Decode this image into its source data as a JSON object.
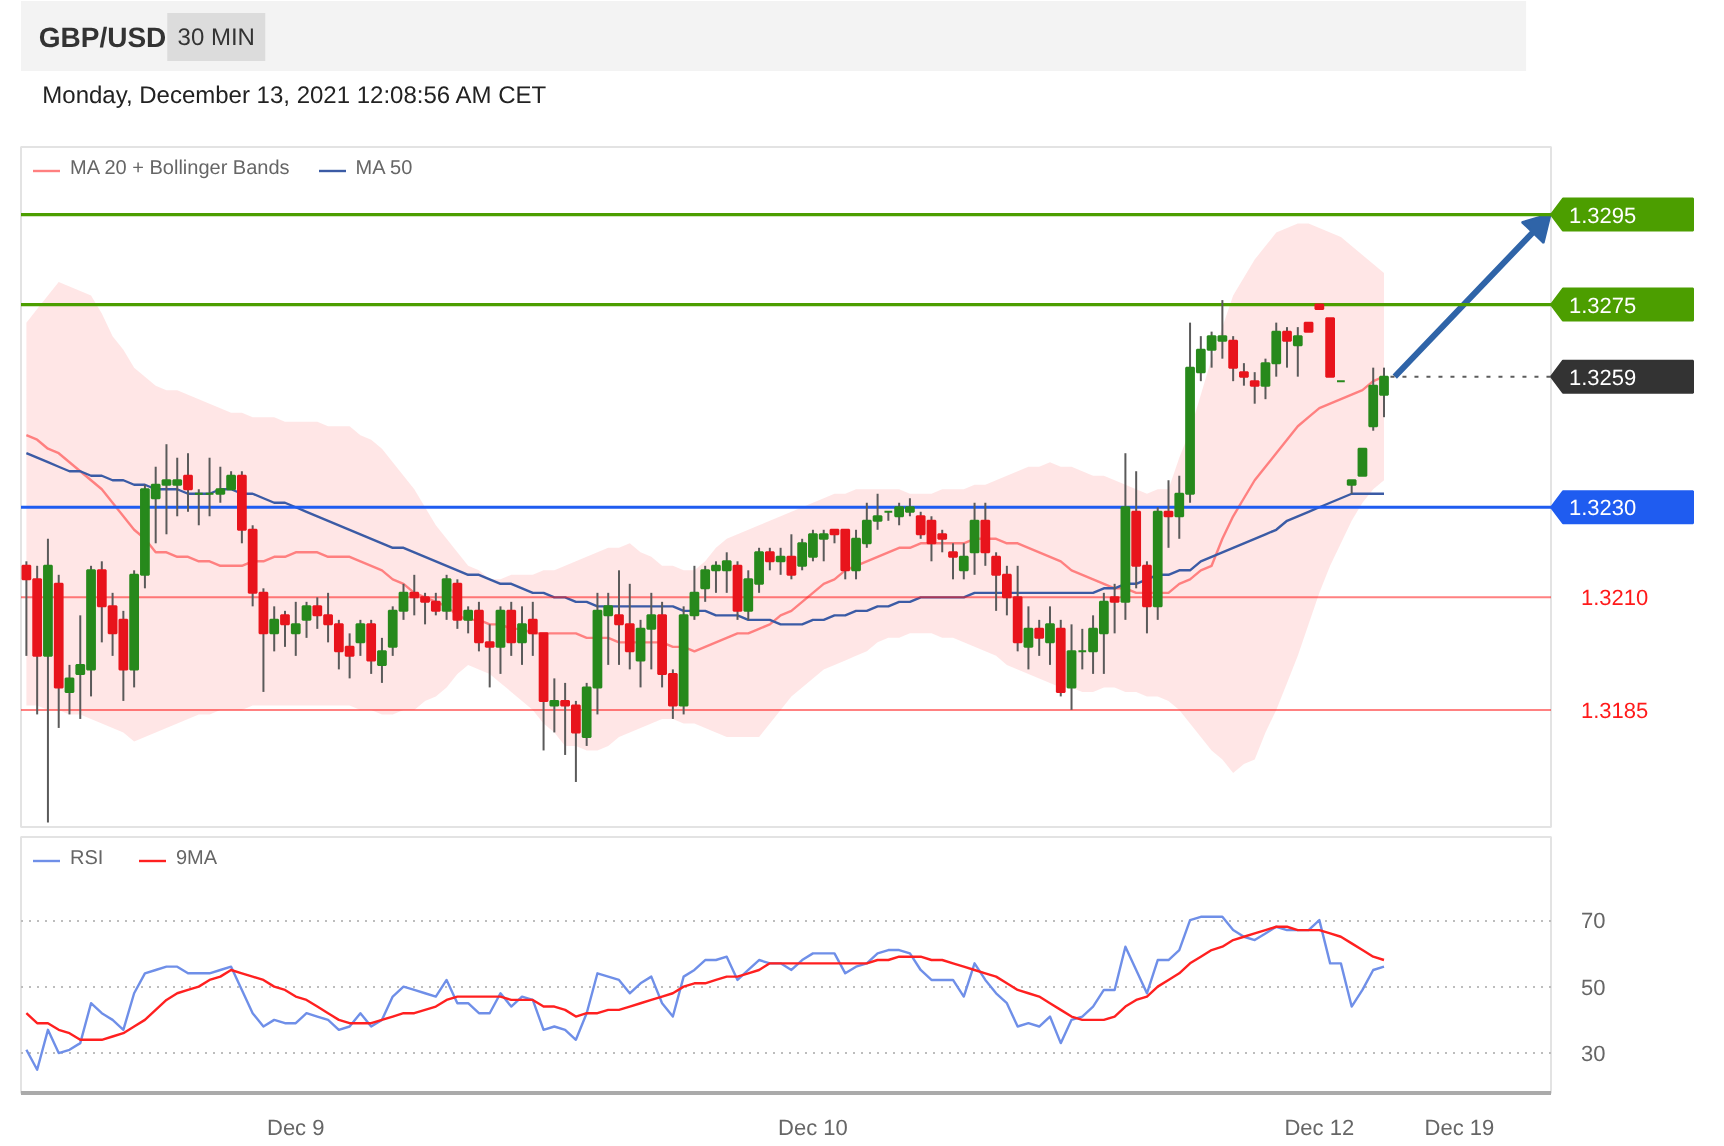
{
  "chart_data": [
    {
      "type": "candlestick",
      "title": "GBP/USD",
      "subtitle": "Monday, December 13, 2021 12:08:56 AM CET",
      "annotations": [
        "30 MIN"
      ],
      "categories": [
        null,
        null,
        null,
        null,
        null,
        null,
        null,
        null,
        null,
        null,
        null,
        null,
        null,
        null,
        null,
        null,
        null,
        null,
        null,
        null,
        null,
        null,
        null,
        null,
        null,
        null,
        null,
        null,
        null,
        null,
        null,
        null,
        null,
        null,
        null,
        null,
        null,
        null,
        null,
        null,
        null,
        null,
        null,
        null,
        null,
        null,
        null,
        null,
        null,
        null,
        null,
        null,
        null,
        null,
        null,
        null,
        null,
        null,
        null,
        null,
        null,
        null,
        null,
        null,
        null,
        null,
        null,
        null,
        null,
        null,
        null,
        null,
        null,
        null,
        null,
        null,
        null,
        null,
        null,
        null,
        null,
        null,
        null,
        null,
        null,
        null,
        null,
        null,
        null,
        null,
        null,
        null,
        null,
        null,
        null,
        null,
        null,
        null,
        null,
        null,
        null,
        null,
        null,
        null,
        null,
        null,
        null,
        null,
        null,
        null,
        null,
        null,
        null,
        null,
        null,
        null,
        null,
        null,
        null,
        null,
        null,
        null,
        null,
        null,
        null,
        null,
        null,
        null,
        null,
        null,
        null,
        null,
        null,
        null,
        null,
        null,
        null,
        null,
        null,
        null,
        null,
        null
      ],
      "ohlc": [
        [
          1.3217,
          1.3218,
          1.3197,
          1.3214
        ],
        [
          1.3214,
          1.3217,
          1.3184,
          1.3197
        ],
        [
          1.3197,
          1.3223,
          1.316,
          1.3217
        ],
        [
          1.3213,
          1.3215,
          1.3181,
          1.319
        ],
        [
          1.3189,
          1.3195,
          1.3184,
          1.3192
        ],
        [
          1.3193,
          1.3206,
          1.3183,
          1.3195
        ],
        [
          1.3194,
          1.3217,
          1.3188,
          1.3216
        ],
        [
          1.3216,
          1.3218,
          1.32,
          1.3208
        ],
        [
          1.3208,
          1.3211,
          1.3197,
          1.3202
        ],
        [
          1.3205,
          1.3207,
          1.3187,
          1.3194
        ],
        [
          1.3194,
          1.3216,
          1.319,
          1.3215
        ],
        [
          1.3215,
          1.3235,
          1.3212,
          1.3234
        ],
        [
          1.3232,
          1.3239,
          1.3222,
          1.3235
        ],
        [
          1.3235,
          1.3244,
          1.3224,
          1.3236
        ],
        [
          1.3235,
          1.3241,
          1.3228,
          1.3236
        ],
        [
          1.3237,
          1.3242,
          1.3229,
          1.3234
        ],
        [
          1.3233,
          1.3234,
          1.3226,
          1.3233
        ],
        [
          1.3233,
          1.3241,
          1.3228,
          1.3233
        ],
        [
          1.3233,
          1.3239,
          1.3231,
          1.3234
        ],
        [
          1.3234,
          1.3238,
          1.3234,
          1.3237
        ],
        [
          1.3237,
          1.3238,
          1.3222,
          1.3225
        ],
        [
          1.3225,
          1.3226,
          1.3208,
          1.3211
        ],
        [
          1.3211,
          1.3212,
          1.3189,
          1.3202
        ],
        [
          1.3202,
          1.3208,
          1.3198,
          1.3205
        ],
        [
          1.3206,
          1.3207,
          1.3199,
          1.3204
        ],
        [
          1.3202,
          1.3209,
          1.3197,
          1.3204
        ],
        [
          1.3205,
          1.3209,
          1.3201,
          1.3208
        ],
        [
          1.3208,
          1.321,
          1.3203,
          1.3206
        ],
        [
          1.3206,
          1.3211,
          1.32,
          1.3204
        ],
        [
          1.3204,
          1.3205,
          1.3194,
          1.3198
        ],
        [
          1.3199,
          1.3202,
          1.3192,
          1.3197
        ],
        [
          1.32,
          1.3205,
          1.3197,
          1.3204
        ],
        [
          1.3204,
          1.3205,
          1.3193,
          1.3196
        ],
        [
          1.3195,
          1.3201,
          1.3191,
          1.3198
        ],
        [
          1.3199,
          1.3208,
          1.3197,
          1.3207
        ],
        [
          1.3207,
          1.3213,
          1.3205,
          1.3211
        ],
        [
          1.3211,
          1.3215,
          1.3206,
          1.321
        ],
        [
          1.321,
          1.3211,
          1.3204,
          1.3209
        ],
        [
          1.3209,
          1.3211,
          1.3206,
          1.3207
        ],
        [
          1.3207,
          1.3215,
          1.3205,
          1.3214
        ],
        [
          1.3213,
          1.3214,
          1.3203,
          1.3205
        ],
        [
          1.3205,
          1.3208,
          1.3202,
          1.3207
        ],
        [
          1.3207,
          1.3209,
          1.3198,
          1.32
        ],
        [
          1.32,
          1.3204,
          1.319,
          1.3199
        ],
        [
          1.3199,
          1.3208,
          1.3193,
          1.3207
        ],
        [
          1.3207,
          1.3209,
          1.3197,
          1.32
        ],
        [
          1.32,
          1.3208,
          1.3195,
          1.3204
        ],
        [
          1.3205,
          1.3209,
          1.3197,
          1.3202
        ],
        [
          1.3202,
          1.3202,
          1.3176,
          1.3187
        ],
        [
          1.3186,
          1.3192,
          1.318,
          1.3187
        ],
        [
          1.3187,
          1.3191,
          1.3175,
          1.3186
        ],
        [
          1.3186,
          1.3187,
          1.3169,
          1.318
        ],
        [
          1.3179,
          1.3191,
          1.3177,
          1.319
        ],
        [
          1.319,
          1.3211,
          1.3184,
          1.3207
        ],
        [
          1.3206,
          1.3211,
          1.3195,
          1.3208
        ],
        [
          1.3206,
          1.3216,
          1.3195,
          1.3204
        ],
        [
          1.3204,
          1.3213,
          1.3194,
          1.3198
        ],
        [
          1.3196,
          1.3205,
          1.319,
          1.3203
        ],
        [
          1.3203,
          1.3211,
          1.3194,
          1.3206
        ],
        [
          1.3206,
          1.3209,
          1.319,
          1.3193
        ],
        [
          1.3193,
          1.3194,
          1.3183,
          1.3186
        ],
        [
          1.3186,
          1.3208,
          1.3184,
          1.3206
        ],
        [
          1.3206,
          1.3217,
          1.3205,
          1.3211
        ],
        [
          1.3212,
          1.3217,
          1.3209,
          1.3216
        ],
        [
          1.3216,
          1.3218,
          1.3211,
          1.3217
        ],
        [
          1.3216,
          1.322,
          1.3211,
          1.3218
        ],
        [
          1.3217,
          1.3218,
          1.3205,
          1.3207
        ],
        [
          1.3207,
          1.3216,
          1.3205,
          1.3214
        ],
        [
          1.3213,
          1.3221,
          1.3211,
          1.322
        ],
        [
          1.322,
          1.3221,
          1.3216,
          1.3218
        ],
        [
          1.3218,
          1.3221,
          1.3215,
          1.3219
        ],
        [
          1.3219,
          1.3224,
          1.3214,
          1.3215
        ],
        [
          1.3217,
          1.3223,
          1.3216,
          1.3222
        ],
        [
          1.3219,
          1.3225,
          1.3218,
          1.3224
        ],
        [
          1.3223,
          1.3225,
          1.3218,
          1.3224
        ],
        [
          1.3225,
          1.3225,
          1.3222,
          1.3224
        ],
        [
          1.3225,
          1.3225,
          1.3214,
          1.3216
        ],
        [
          1.3216,
          1.3225,
          1.3214,
          1.3223
        ],
        [
          1.3222,
          1.3231,
          1.3221,
          1.3227
        ],
        [
          1.3227,
          1.3233,
          1.3225,
          1.3228
        ],
        [
          1.3229,
          1.3229,
          1.3227,
          1.3229
        ],
        [
          1.3228,
          1.3231,
          1.3226,
          1.323
        ],
        [
          1.3229,
          1.3232,
          1.3228,
          1.323
        ],
        [
          1.3228,
          1.3229,
          1.3223,
          1.3224
        ],
        [
          1.3227,
          1.3228,
          1.3218,
          1.3222
        ],
        [
          1.3224,
          1.3225,
          1.322,
          1.3223
        ],
        [
          1.322,
          1.3222,
          1.3214,
          1.3219
        ],
        [
          1.3216,
          1.3222,
          1.3214,
          1.3219
        ],
        [
          1.322,
          1.3231,
          1.3215,
          1.3227
        ],
        [
          1.3227,
          1.3231,
          1.3217,
          1.322
        ],
        [
          1.3219,
          1.322,
          1.3207,
          1.3215
        ],
        [
          1.3215,
          1.3217,
          1.3206,
          1.321
        ],
        [
          1.321,
          1.3217,
          1.3198,
          1.32
        ],
        [
          1.3199,
          1.3208,
          1.3194,
          1.3203
        ],
        [
          1.3203,
          1.3205,
          1.3197,
          1.3201
        ],
        [
          1.32,
          1.3208,
          1.3195,
          1.3204
        ],
        [
          1.3203,
          1.3205,
          1.3188,
          1.3189
        ],
        [
          1.319,
          1.3204,
          1.3185,
          1.3198
        ],
        [
          1.3198,
          1.3203,
          1.3194,
          1.3198
        ],
        [
          1.3198,
          1.3206,
          1.3193,
          1.3203
        ],
        [
          1.3202,
          1.3211,
          1.3193,
          1.3209
        ],
        [
          1.321,
          1.3213,
          1.3202,
          1.3209
        ],
        [
          1.3209,
          1.3242,
          1.3205,
          1.323
        ],
        [
          1.3229,
          1.3238,
          1.3212,
          1.3217
        ],
        [
          1.3217,
          1.3218,
          1.3202,
          1.3208
        ],
        [
          1.3208,
          1.323,
          1.3205,
          1.3229
        ],
        [
          1.3229,
          1.3236,
          1.3221,
          1.3228
        ],
        [
          1.3228,
          1.3237,
          1.3223,
          1.3233
        ],
        [
          1.3233,
          1.3271,
          1.3231,
          1.3261
        ],
        [
          1.326,
          1.3268,
          1.3258,
          1.3265
        ],
        [
          1.3265,
          1.3269,
          1.3261,
          1.3268
        ],
        [
          1.3267,
          1.3276,
          1.3263,
          1.3268
        ],
        [
          1.3267,
          1.3268,
          1.3258,
          1.3261
        ],
        [
          1.326,
          1.3262,
          1.3257,
          1.3259
        ],
        [
          1.3258,
          1.326,
          1.3253,
          1.3257
        ],
        [
          1.3257,
          1.3263,
          1.3254,
          1.3262
        ],
        [
          1.3262,
          1.3271,
          1.3259,
          1.3269
        ],
        [
          1.3269,
          1.327,
          1.3261,
          1.3267
        ],
        [
          1.3266,
          1.327,
          1.3259,
          1.3268
        ],
        [
          1.3271,
          1.3271,
          1.3269,
          1.3269
        ],
        [
          1.3275,
          1.3275,
          1.3274,
          1.3274
        ],
        [
          1.3272,
          1.3272,
          1.3259,
          1.3259
        ],
        [
          1.3258,
          1.3258,
          1.3258,
          1.3258
        ],
        [
          1.3235,
          1.3236,
          1.3233,
          1.3236
        ],
        [
          1.3237,
          1.3243,
          1.3237,
          1.3243
        ],
        [
          1.3248,
          1.3261,
          1.3247,
          1.3257
        ],
        [
          1.3255,
          1.3261,
          1.325,
          1.3259
        ],
        null,
        null,
        null,
        null,
        null,
        null,
        null,
        null,
        null,
        null,
        null,
        null,
        null,
        null,
        null
      ],
      "series": [
        {
          "name": "MA 20 + Bollinger Bands",
          "type": "line",
          "color": "#ff8080",
          "values": [
            1.3246,
            1.3245,
            1.3243,
            1.3242,
            1.324,
            1.3238,
            1.3236,
            1.3234,
            1.3231,
            1.3228,
            1.3225,
            1.3223,
            1.322,
            1.322,
            1.3219,
            1.3219,
            1.3218,
            1.3218,
            1.3217,
            1.3217,
            1.3217,
            1.3218,
            1.3218,
            1.3219,
            1.3219,
            1.322,
            1.322,
            1.322,
            1.3219,
            1.3219,
            1.3219,
            1.3218,
            1.3217,
            1.3216,
            1.3214,
            1.3213,
            1.3211,
            1.321,
            1.3209,
            1.3208,
            1.3206,
            1.3205,
            1.3205,
            1.3204,
            1.3204,
            1.3203,
            1.3203,
            1.3202,
            1.3202,
            1.3202,
            1.3202,
            1.3202,
            1.3201,
            1.3201,
            1.3201,
            1.32,
            1.32,
            1.32,
            1.32,
            1.32,
            1.3199,
            1.3199,
            1.3198,
            1.3199,
            1.32,
            1.3201,
            1.3202,
            1.3202,
            1.3203,
            1.3204,
            1.3206,
            1.3207,
            1.3209,
            1.3211,
            1.3213,
            1.3214,
            1.3216,
            1.3217,
            1.3218,
            1.3219,
            1.322,
            1.3221,
            1.3221,
            1.3222,
            1.3222,
            1.3222,
            1.3222,
            1.3222,
            1.3223,
            1.3223,
            1.3223,
            1.3222,
            1.3222,
            1.3221,
            1.322,
            1.3219,
            1.3218,
            1.3216,
            1.3215,
            1.3214,
            1.3213,
            1.3212,
            1.3212,
            1.3211,
            1.3211,
            1.3211,
            1.3211,
            1.3213,
            1.3214,
            1.3216,
            1.3217,
            1.3223,
            1.3228,
            1.3232,
            1.3236,
            1.3239,
            1.3242,
            1.3245,
            1.3248,
            1.325,
            1.3252,
            1.3253,
            1.3254,
            1.3255,
            1.3256,
            1.3258,
            1.3259,
            null,
            null,
            null,
            null,
            null,
            null,
            null,
            null,
            null,
            null,
            null,
            null,
            null,
            null,
            null
          ],
          "lower": [
            1.3186,
            1.3186,
            1.3185,
            1.3185,
            1.3184,
            1.3184,
            1.3183,
            1.3182,
            1.3181,
            1.318,
            1.3178,
            1.3179,
            1.318,
            1.3181,
            1.3182,
            1.3183,
            1.3184,
            1.3184,
            1.3185,
            1.3185,
            1.3185,
            1.3186,
            1.3186,
            1.3186,
            1.3186,
            1.3186,
            1.3186,
            1.3186,
            1.3186,
            1.3186,
            1.3186,
            1.3185,
            1.3185,
            1.3184,
            1.3184,
            1.3185,
            1.3185,
            1.3187,
            1.3188,
            1.319,
            1.3193,
            1.3195,
            1.3194,
            1.3193,
            1.3191,
            1.3189,
            1.3187,
            1.3185,
            1.3182,
            1.318,
            1.3177,
            1.3177,
            1.3176,
            1.3176,
            1.3177,
            1.3179,
            1.318,
            1.3181,
            1.3182,
            1.3183,
            1.3183,
            1.3182,
            1.3182,
            1.3181,
            1.318,
            1.3179,
            1.3179,
            1.3179,
            1.3179,
            1.3182,
            1.3185,
            1.3188,
            1.319,
            1.3192,
            1.3194,
            1.3195,
            1.3196,
            1.3197,
            1.3198,
            1.32,
            1.3201,
            1.3201,
            1.3202,
            1.3202,
            1.3202,
            1.3201,
            1.3201,
            1.32,
            1.3199,
            1.3198,
            1.3197,
            1.3195,
            1.3194,
            1.3193,
            1.3192,
            1.3191,
            1.319,
            1.319,
            1.3189,
            1.3189,
            1.319,
            1.319,
            1.3189,
            1.3189,
            1.3188,
            1.3188,
            1.3187,
            1.3185,
            1.3182,
            1.3179,
            1.3176,
            1.3174,
            1.3171,
            1.3173,
            1.3174,
            1.318,
            1.3185,
            1.3191,
            1.3197,
            1.3204,
            1.3211,
            1.3217,
            1.3222,
            1.3227,
            1.3231,
            1.3234,
            1.3236,
            null,
            null,
            null,
            null,
            null,
            null,
            null,
            null,
            null,
            null,
            null,
            null,
            null,
            null,
            null
          ],
          "upper": [
            1.3271,
            1.3274,
            1.3277,
            1.328,
            1.3279,
            1.3278,
            1.3277,
            1.3273,
            1.3268,
            1.3265,
            1.3261,
            1.3259,
            1.3257,
            1.3256,
            1.3256,
            1.3255,
            1.3254,
            1.3253,
            1.3252,
            1.3251,
            1.3251,
            1.325,
            1.325,
            1.325,
            1.3249,
            1.3249,
            1.3249,
            1.3249,
            1.3248,
            1.3248,
            1.3248,
            1.3246,
            1.3245,
            1.3243,
            1.324,
            1.3237,
            1.3234,
            1.323,
            1.3226,
            1.3223,
            1.322,
            1.3217,
            1.3216,
            1.3214,
            1.3214,
            1.3215,
            1.3215,
            1.3215,
            1.3216,
            1.3216,
            1.3217,
            1.3218,
            1.3219,
            1.322,
            1.3221,
            1.3221,
            1.3222,
            1.322,
            1.3219,
            1.3217,
            1.3217,
            1.3216,
            1.3216,
            1.3218,
            1.3221,
            1.3223,
            1.3224,
            1.3225,
            1.3226,
            1.3227,
            1.3228,
            1.3229,
            1.323,
            1.3231,
            1.3232,
            1.3233,
            1.3233,
            1.3234,
            1.3234,
            1.3234,
            1.3234,
            1.3234,
            1.3233,
            1.3233,
            1.3233,
            1.3234,
            1.3234,
            1.3234,
            1.3235,
            1.3235,
            1.3236,
            1.3237,
            1.3238,
            1.3239,
            1.3239,
            1.324,
            1.3239,
            1.3239,
            1.3238,
            1.3237,
            1.3237,
            1.3236,
            1.3235,
            1.3234,
            1.3233,
            1.3234,
            1.3234,
            1.3241,
            1.3247,
            1.3255,
            1.3263,
            1.327,
            1.3277,
            1.3281,
            1.3285,
            1.3288,
            1.3291,
            1.3292,
            1.3293,
            1.3293,
            1.3292,
            1.3291,
            1.329,
            1.3288,
            1.3286,
            1.3284,
            1.3282,
            null,
            null,
            null,
            null,
            null,
            null,
            null,
            null,
            null,
            null,
            null,
            null,
            null,
            null,
            null
          ]
        },
        {
          "name": "MA 50",
          "type": "line",
          "color": "#3b5ba5",
          "values": [
            1.3242,
            1.3241,
            1.324,
            1.3239,
            1.3238,
            1.3238,
            1.3237,
            1.3237,
            1.3236,
            1.3236,
            1.3235,
            1.3235,
            1.3234,
            1.3234,
            1.3234,
            1.3233,
            1.3233,
            1.3233,
            1.3234,
            1.3234,
            1.3233,
            1.3233,
            1.3232,
            1.3231,
            1.3231,
            1.323,
            1.3229,
            1.3228,
            1.3227,
            1.3226,
            1.3225,
            1.3224,
            1.3223,
            1.3222,
            1.3221,
            1.3221,
            1.322,
            1.3219,
            1.3218,
            1.3217,
            1.3216,
            1.3215,
            1.3215,
            1.3214,
            1.3213,
            1.3213,
            1.3212,
            1.3211,
            1.3211,
            1.321,
            1.321,
            1.3209,
            1.3209,
            1.3208,
            1.3208,
            1.3208,
            1.3208,
            1.3208,
            1.3208,
            1.3208,
            1.3208,
            1.3207,
            1.3207,
            1.3207,
            1.3206,
            1.3206,
            1.3206,
            1.3205,
            1.3205,
            1.3205,
            1.3204,
            1.3204,
            1.3204,
            1.3205,
            1.3205,
            1.3206,
            1.3206,
            1.3207,
            1.3207,
            1.3208,
            1.3208,
            1.3209,
            1.3209,
            1.321,
            1.321,
            1.321,
            1.321,
            1.321,
            1.3211,
            1.3211,
            1.3211,
            1.3211,
            1.3211,
            1.3211,
            1.3211,
            1.3211,
            1.3211,
            1.3211,
            1.3211,
            1.3211,
            1.3212,
            1.3212,
            1.3213,
            1.3213,
            1.3214,
            1.3215,
            1.3215,
            1.3216,
            1.3216,
            1.3218,
            1.3219,
            1.322,
            1.3221,
            1.3222,
            1.3223,
            1.3224,
            1.3225,
            1.3227,
            1.3228,
            1.3229,
            1.323,
            1.3231,
            1.3232,
            1.3233,
            1.3233,
            1.3233,
            1.3233,
            null,
            null,
            null,
            null,
            null,
            null,
            null,
            null,
            null,
            null,
            null,
            null,
            null,
            null,
            null
          ]
        },
        {
          "type": "line",
          "color": "#2f64a8",
          "values": [
            null,
            null,
            null,
            null,
            null,
            null,
            null,
            null,
            null,
            null,
            null,
            null,
            null,
            null,
            null,
            null,
            null,
            null,
            null,
            null,
            null,
            null,
            null,
            null,
            null,
            null,
            null,
            null,
            null,
            null,
            null,
            null,
            null,
            null,
            null,
            null,
            null,
            null,
            null,
            null,
            null,
            null,
            null,
            null,
            null,
            null,
            null,
            null,
            null,
            null,
            null,
            null,
            null,
            null,
            null,
            null,
            null,
            null,
            null,
            null,
            null,
            null,
            null,
            null,
            null,
            null,
            null,
            null,
            null,
            null,
            null,
            null,
            null,
            null,
            null,
            null,
            null,
            null,
            null,
            null,
            null,
            null,
            null,
            null,
            null,
            null,
            null,
            null,
            null,
            null,
            null,
            null,
            null,
            null,
            null,
            null,
            null,
            null,
            null,
            null,
            null,
            null,
            null,
            null,
            null,
            null,
            null,
            null,
            null,
            null,
            null,
            null,
            null,
            null,
            null,
            null,
            null,
            null,
            null,
            null,
            null,
            null,
            null,
            null,
            null,
            null,
            null,
            1.3259,
            1.32615,
            1.3264,
            1.32665,
            1.3269,
            1.32715,
            1.3274,
            1.32765,
            1.3279,
            1.32815,
            1.3284,
            1.32865,
            1.3289,
            1.32915,
            1.3294
          ]
        }
      ],
      "ref_lines": [
        {
          "axis": "y",
          "value": 1.3295,
          "label": "1.3295",
          "color": "#4c9e00"
        },
        {
          "axis": "y",
          "value": 1.3275,
          "label": "1.3275",
          "color": "#4c9e00"
        },
        {
          "axis": "y",
          "value": 1.3259,
          "label": "1.3259",
          "color": "#333333",
          "line_style": "dotted"
        },
        {
          "axis": "y",
          "value": 1.323,
          "label": "1.3230",
          "color": "#1f5cf0"
        },
        {
          "axis": "y",
          "value": 1.321,
          "color": "#ff1a1a"
        },
        {
          "axis": "y",
          "value": 1.3185,
          "color": "#ff1a1a"
        }
      ],
      "ylim": [
        1.3159,
        1.331
      ],
      "yticks": [
        {
          "value": 1.3185,
          "label": "1.3185"
        },
        {
          "value": 1.321,
          "label": "1.3210"
        }
      ],
      "legend": "top left",
      "tick_labels": "y"
    },
    {
      "type": "line",
      "categories": [
        null,
        null,
        null,
        null,
        null,
        null,
        null,
        null,
        null,
        null,
        null,
        null,
        null,
        null,
        null,
        null,
        null,
        null,
        null,
        null,
        null,
        null,
        null,
        null,
        null,
        "Dec 9",
        null,
        null,
        null,
        null,
        null,
        null,
        null,
        null,
        null,
        null,
        null,
        null,
        null,
        null,
        null,
        null,
        null,
        null,
        null,
        null,
        null,
        null,
        null,
        null,
        null,
        null,
        null,
        null,
        null,
        null,
        null,
        null,
        null,
        null,
        null,
        null,
        null,
        null,
        null,
        null,
        null,
        null,
        null,
        null,
        null,
        null,
        null,
        "Dec 10",
        null,
        null,
        null,
        null,
        null,
        null,
        null,
        null,
        null,
        null,
        null,
        null,
        null,
        null,
        null,
        null,
        null,
        null,
        null,
        null,
        null,
        null,
        null,
        null,
        null,
        null,
        null,
        null,
        null,
        null,
        null,
        null,
        null,
        null,
        null,
        null,
        null,
        null,
        null,
        null,
        null,
        null,
        null,
        null,
        null,
        null,
        "Dec 12",
        null,
        null,
        null,
        null,
        null,
        null,
        null,
        null,
        null,
        null,
        null,
        null,
        "Dec 19",
        null,
        null,
        null,
        null,
        null,
        null,
        null,
        null
      ],
      "series": [
        {
          "name": "RSI",
          "color": "#6f8fe8",
          "values": [
            31,
            25,
            37,
            30,
            31,
            33,
            45,
            42,
            40,
            37,
            48,
            54,
            55,
            56,
            56,
            54,
            54,
            54,
            55,
            56,
            49,
            42,
            38,
            40,
            39,
            39,
            42,
            41,
            40,
            37,
            38,
            42,
            38,
            40,
            47,
            50,
            49,
            48,
            47,
            52,
            45,
            45,
            42,
            42,
            48,
            44,
            47,
            46,
            37,
            38,
            37,
            34,
            42,
            54,
            53,
            52,
            48,
            51,
            53,
            45,
            41,
            53,
            55,
            58,
            58,
            59,
            52,
            55,
            58,
            57,
            57,
            55,
            58,
            60,
            60,
            60,
            54,
            56,
            57,
            60,
            61,
            61,
            60,
            55,
            52,
            52,
            52,
            47,
            57,
            52,
            48,
            45,
            38,
            39,
            38,
            41,
            33,
            40,
            41,
            44,
            49,
            49,
            62,
            55,
            48,
            58,
            58,
            61,
            70,
            71,
            71,
            71,
            67,
            65,
            64,
            66,
            68,
            67,
            67,
            67,
            70,
            57,
            57,
            44,
            49,
            55,
            56,
            null,
            null,
            null,
            null,
            null,
            null,
            null,
            null,
            null,
            null,
            null,
            null,
            null,
            null,
            null
          ]
        },
        {
          "name": "9MA",
          "color": "#ff2020",
          "values": [
            42,
            39,
            39,
            37,
            36,
            34,
            34,
            34,
            35,
            36,
            38,
            40,
            43,
            46,
            48,
            49,
            50,
            52,
            53,
            55,
            54,
            53,
            52,
            50,
            49,
            47,
            46,
            44,
            42,
            40,
            39,
            39,
            39,
            40,
            41,
            42,
            42,
            43,
            44,
            46,
            47,
            47,
            47,
            47,
            47,
            46,
            46,
            46,
            44,
            44,
            43,
            41,
            42,
            42,
            43,
            43,
            44,
            45,
            46,
            47,
            48,
            50,
            51,
            51,
            52,
            53,
            53,
            54,
            55,
            57,
            57,
            57,
            57,
            57,
            57,
            57,
            57,
            57,
            57,
            58,
            58,
            59,
            59,
            59,
            58,
            58,
            57,
            56,
            55,
            54,
            53,
            51,
            49,
            48,
            47,
            45,
            43,
            41,
            40,
            40,
            40,
            41,
            44,
            46,
            47,
            50,
            52,
            54,
            57,
            59,
            61,
            62,
            64,
            65,
            66,
            67,
            68,
            68,
            67,
            67,
            67,
            66,
            65,
            63,
            61,
            59,
            58,
            null,
            null,
            null,
            null,
            null,
            null,
            null,
            null,
            null,
            null,
            null,
            null,
            null,
            null,
            null
          ]
        }
      ],
      "ylim": [
        18,
        95
      ],
      "yticks": [
        30,
        50,
        70
      ],
      "grid": "y",
      "legend": "top left"
    }
  ]
}
